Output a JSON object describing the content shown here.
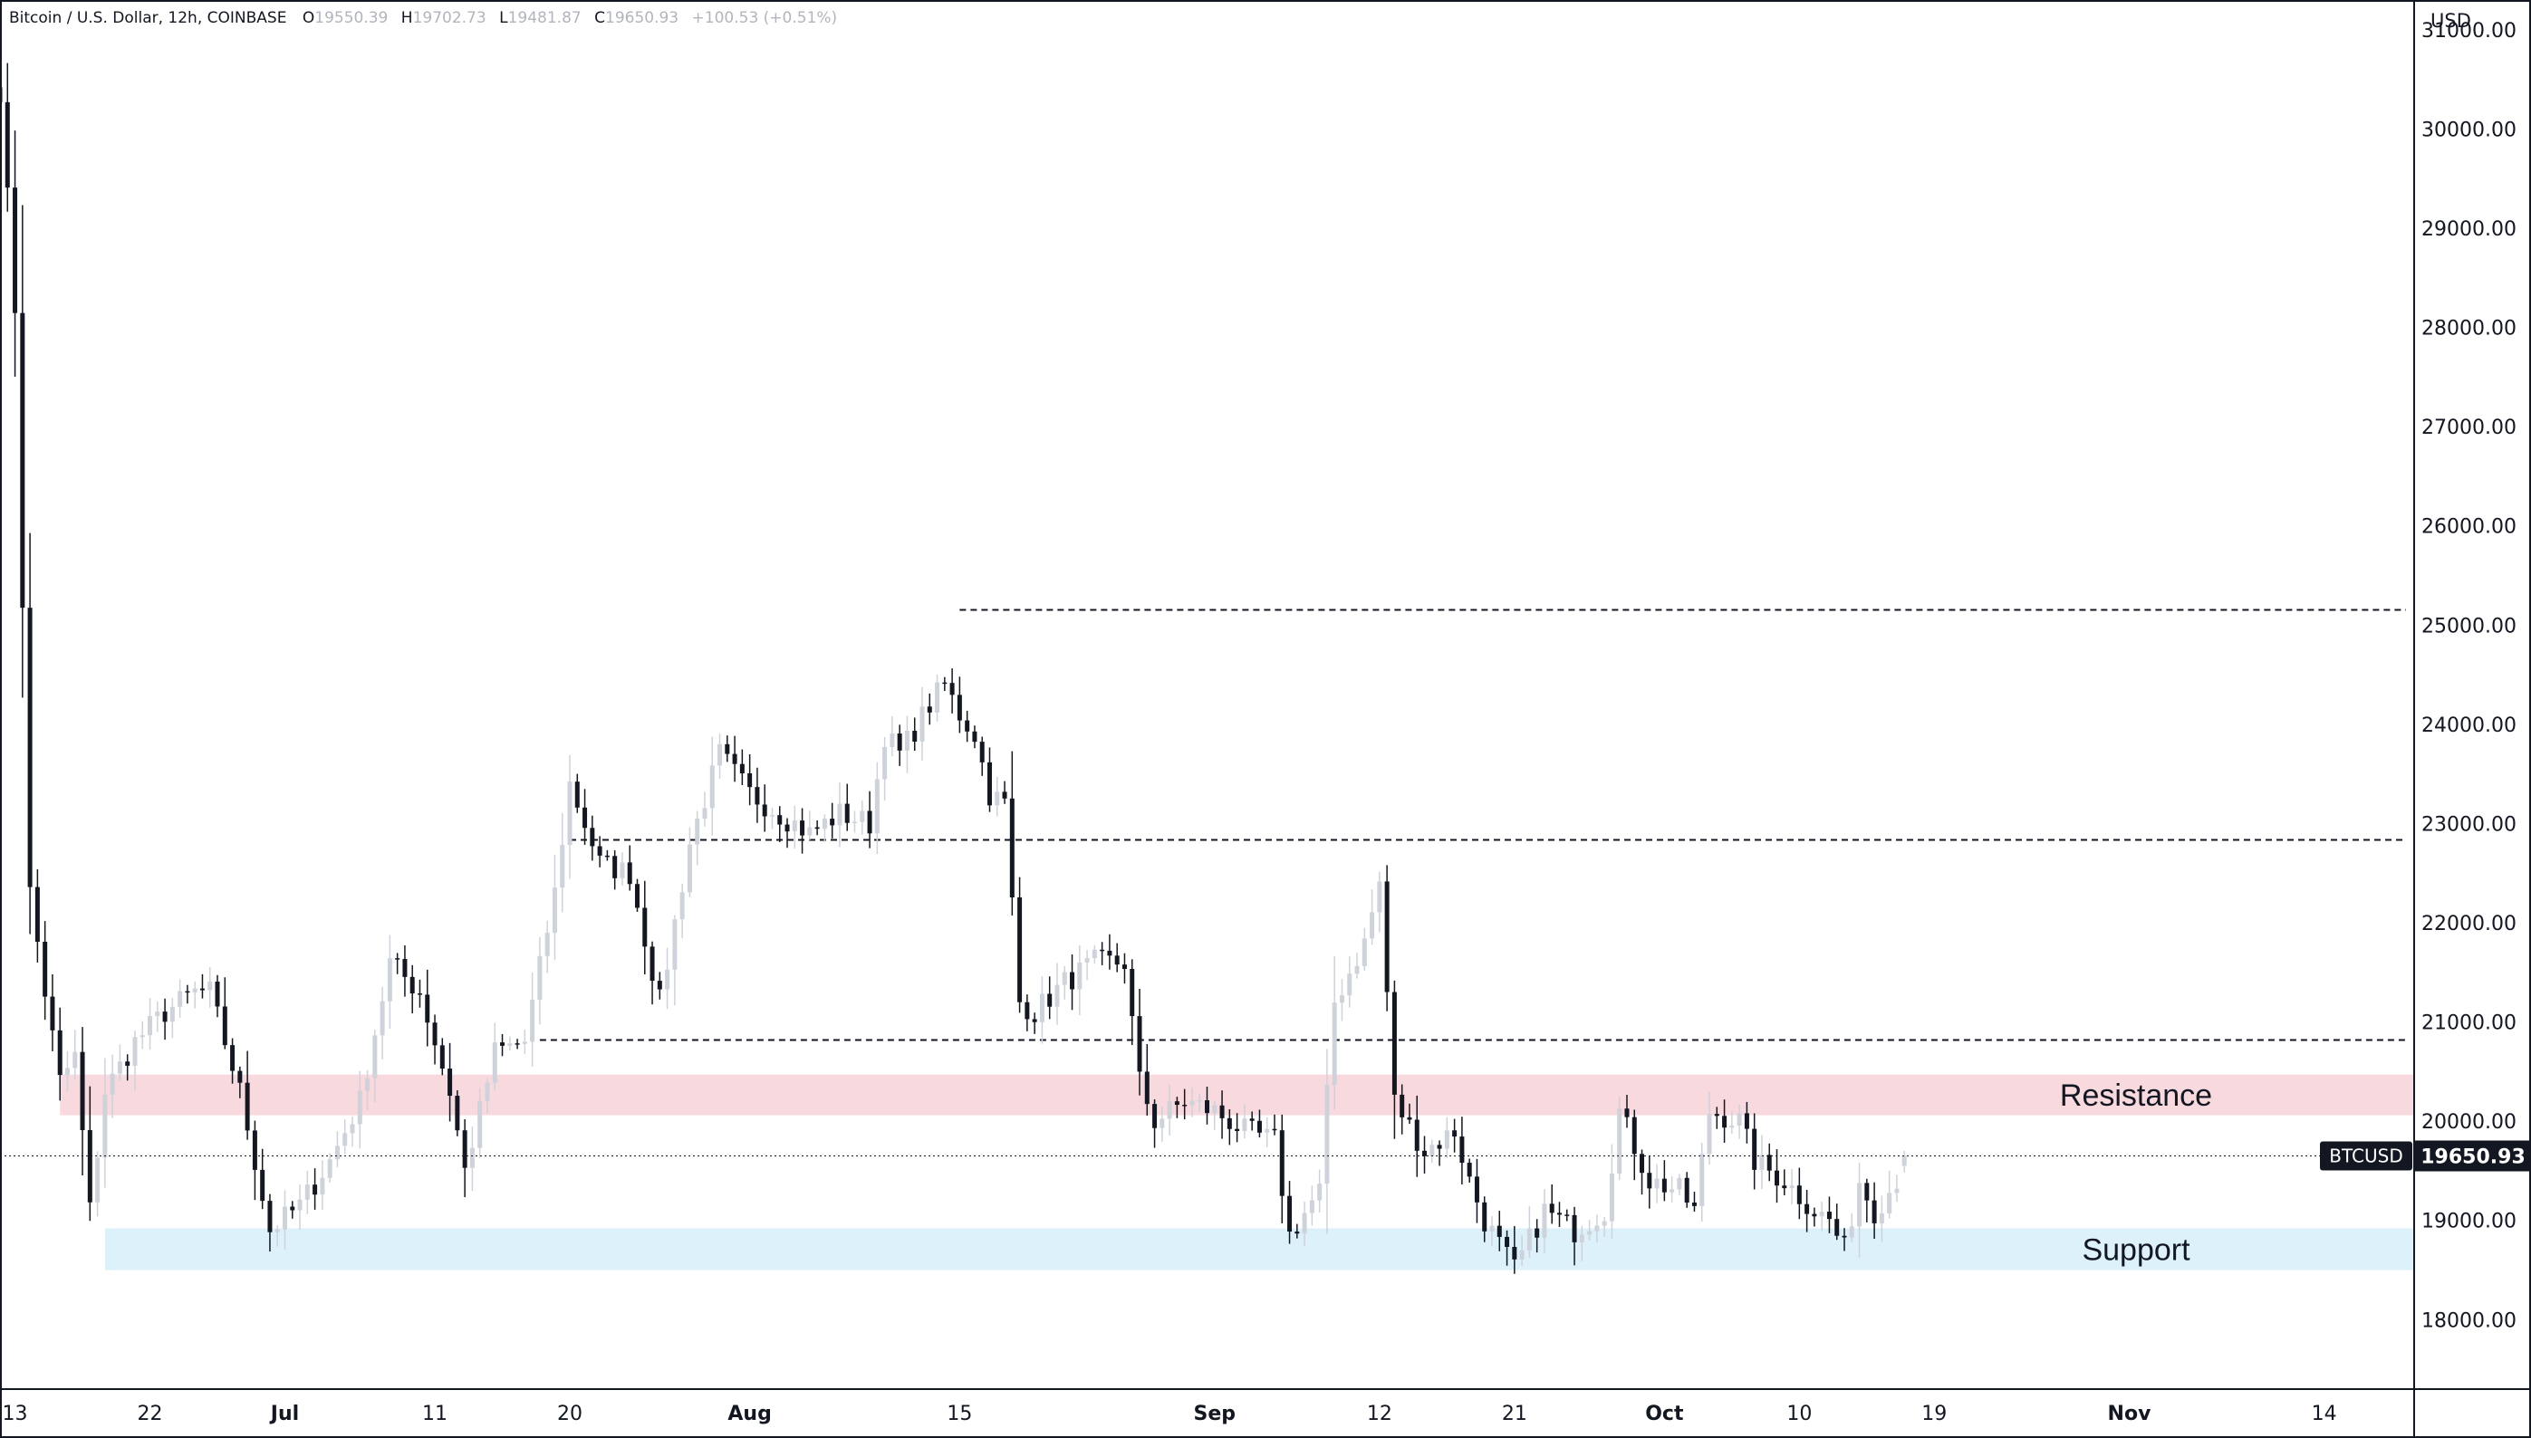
{
  "header": {
    "symbol_info": "Bitcoin / U.S. Dollar, 12h, COINBASE",
    "open_label": "O",
    "open_value": "19550.39",
    "high_label": "H",
    "high_value": "19702.73",
    "low_label": "L",
    "low_value": "19481.87",
    "close_label": "C",
    "close_value": "19650.93",
    "change": "+100.53 (+0.51%)"
  },
  "price_scale": {
    "currency": "USD",
    "ticks": [
      "31000.00",
      "30000.00",
      "29000.00",
      "28000.00",
      "27000.00",
      "26000.00",
      "25000.00",
      "24000.00",
      "23000.00",
      "22000.00",
      "21000.00",
      "20000.00",
      "19000.00",
      "18000.00"
    ],
    "tick_values": [
      31000,
      30000,
      29000,
      28000,
      27000,
      26000,
      25000,
      24000,
      23000,
      22000,
      21000,
      20000,
      19000,
      18000
    ]
  },
  "time_scale": {
    "labels": [
      {
        "text": "13",
        "date": "2022-06-13",
        "bold": false
      },
      {
        "text": "22",
        "date": "2022-06-22",
        "bold": false
      },
      {
        "text": "Jul",
        "date": "2022-07-01",
        "bold": true
      },
      {
        "text": "11",
        "date": "2022-07-11",
        "bold": false
      },
      {
        "text": "20",
        "date": "2022-07-20",
        "bold": false
      },
      {
        "text": "Aug",
        "date": "2022-08-01",
        "bold": true
      },
      {
        "text": "15",
        "date": "2022-08-15",
        "bold": false
      },
      {
        "text": "Sep",
        "date": "2022-09-01",
        "bold": true
      },
      {
        "text": "12",
        "date": "2022-09-12",
        "bold": false
      },
      {
        "text": "21",
        "date": "2022-09-21",
        "bold": false
      },
      {
        "text": "Oct",
        "date": "2022-10-01",
        "bold": true
      },
      {
        "text": "10",
        "date": "2022-10-10",
        "bold": false
      },
      {
        "text": "19",
        "date": "2022-10-19",
        "bold": false
      },
      {
        "text": "Nov",
        "date": "2022-11-01",
        "bold": true
      },
      {
        "text": "14",
        "date": "2022-11-14",
        "bold": false
      }
    ]
  },
  "price_tag": {
    "symbol": "BTCUSD",
    "value": "19650.93",
    "price": 19650.93
  },
  "zones": [
    {
      "label": "Resistance",
      "from": 20060,
      "to": 20470,
      "start": "2022-06-16",
      "color": "#f8d9dd"
    },
    {
      "label": "Support",
      "from": 18500,
      "to": 18920,
      "start": "2022-06-19",
      "color": "#dcf1f9"
    }
  ],
  "levels": [
    {
      "price": 25160,
      "start": "2022-08-15"
    },
    {
      "price": 22840,
      "start": "2022-07-20"
    },
    {
      "price": 20820,
      "start": "2022-07-18"
    }
  ],
  "colors": {
    "up": "#ced2db",
    "down": "#131722",
    "border": "#131722",
    "grid_text": "#131722"
  },
  "chart_data": {
    "type": "candlestick",
    "title": "Bitcoin / U.S. Dollar, 12h, COINBASE",
    "xlabel": "",
    "ylabel": "USD",
    "ylim": [
      17300,
      31300
    ],
    "xlim": [
      "2022-06-12",
      "2022-11-20"
    ],
    "interval": "12h",
    "grid": false,
    "anchors": [
      {
        "date": "2022-06-12",
        "c": 30400
      },
      {
        "date": "2022-06-13",
        "c": 28200
      },
      {
        "date": "2022-06-14",
        "c": 22300
      },
      {
        "date": "2022-06-15",
        "c": 21300
      },
      {
        "date": "2022-06-16",
        "c": 20400
      },
      {
        "date": "2022-06-17",
        "c": 20650
      },
      {
        "date": "2022-06-18",
        "c": 19100
      },
      {
        "date": "2022-06-19",
        "c": 20300
      },
      {
        "date": "2022-06-21",
        "c": 20800
      },
      {
        "date": "2022-06-23",
        "c": 21100
      },
      {
        "date": "2022-06-25",
        "c": 21300
      },
      {
        "date": "2022-06-26",
        "c": 21300
      },
      {
        "date": "2022-06-27",
        "c": 20800
      },
      {
        "date": "2022-06-28",
        "c": 20300
      },
      {
        "date": "2022-06-30",
        "c": 18900
      },
      {
        "date": "2022-07-02",
        "c": 19150
      },
      {
        "date": "2022-07-04",
        "c": 19600
      },
      {
        "date": "2022-07-06",
        "c": 20200
      },
      {
        "date": "2022-07-08",
        "c": 21600
      },
      {
        "date": "2022-07-10",
        "c": 21300
      },
      {
        "date": "2022-07-12",
        "c": 20300
      },
      {
        "date": "2022-07-13",
        "c": 19500
      },
      {
        "date": "2022-07-15",
        "c": 20700
      },
      {
        "date": "2022-07-17",
        "c": 20800
      },
      {
        "date": "2022-07-19",
        "c": 22300
      },
      {
        "date": "2022-07-20",
        "c": 23400
      },
      {
        "date": "2022-07-22",
        "c": 22600
      },
      {
        "date": "2022-07-24",
        "c": 22500
      },
      {
        "date": "2022-07-26",
        "c": 21200
      },
      {
        "date": "2022-07-28",
        "c": 22800
      },
      {
        "date": "2022-07-30",
        "c": 23700
      },
      {
        "date": "2022-08-01",
        "c": 23300
      },
      {
        "date": "2022-08-03",
        "c": 23100
      },
      {
        "date": "2022-08-05",
        "c": 22900
      },
      {
        "date": "2022-08-07",
        "c": 23100
      },
      {
        "date": "2022-08-09",
        "c": 23000
      },
      {
        "date": "2022-08-10",
        "c": 23900
      },
      {
        "date": "2022-08-11",
        "c": 23700
      },
      {
        "date": "2022-08-13",
        "c": 24200
      },
      {
        "date": "2022-08-14",
        "c": 24400
      },
      {
        "date": "2022-08-15",
        "c": 24100
      },
      {
        "date": "2022-08-16",
        "c": 23900
      },
      {
        "date": "2022-08-17",
        "c": 23300
      },
      {
        "date": "2022-08-18",
        "c": 23200
      },
      {
        "date": "2022-08-19",
        "c": 21200
      },
      {
        "date": "2022-08-20",
        "c": 21100
      },
      {
        "date": "2022-08-22",
        "c": 21400
      },
      {
        "date": "2022-08-24",
        "c": 21600
      },
      {
        "date": "2022-08-26",
        "c": 21600
      },
      {
        "date": "2022-08-27",
        "c": 20400
      },
      {
        "date": "2022-08-28",
        "c": 20000
      },
      {
        "date": "2022-08-30",
        "c": 20200
      },
      {
        "date": "2022-09-01",
        "c": 20100
      },
      {
        "date": "2022-09-03",
        "c": 19900
      },
      {
        "date": "2022-09-05",
        "c": 19800
      },
      {
        "date": "2022-09-06",
        "c": 18850
      },
      {
        "date": "2022-09-08",
        "c": 19300
      },
      {
        "date": "2022-09-09",
        "c": 21200
      },
      {
        "date": "2022-09-11",
        "c": 21800
      },
      {
        "date": "2022-09-12",
        "c": 22400
      },
      {
        "date": "2022-09-13",
        "c": 20200
      },
      {
        "date": "2022-09-15",
        "c": 19700
      },
      {
        "date": "2022-09-17",
        "c": 19900
      },
      {
        "date": "2022-09-18",
        "c": 19400
      },
      {
        "date": "2022-09-19",
        "c": 19000
      },
      {
        "date": "2022-09-21",
        "c": 18500
      },
      {
        "date": "2022-09-23",
        "c": 19100
      },
      {
        "date": "2022-09-25",
        "c": 18900
      },
      {
        "date": "2022-09-27",
        "c": 19100
      },
      {
        "date": "2022-09-28",
        "c": 20100
      },
      {
        "date": "2022-09-30",
        "c": 19400
      },
      {
        "date": "2022-10-02",
        "c": 19300
      },
      {
        "date": "2022-10-03",
        "c": 19100
      },
      {
        "date": "2022-10-04",
        "c": 20100
      },
      {
        "date": "2022-10-06",
        "c": 20000
      },
      {
        "date": "2022-10-07",
        "c": 19600
      },
      {
        "date": "2022-10-09",
        "c": 19400
      },
      {
        "date": "2022-10-11",
        "c": 19100
      },
      {
        "date": "2022-10-12",
        "c": 19000
      },
      {
        "date": "2022-10-13",
        "c": 18700
      },
      {
        "date": "2022-10-14",
        "c": 19400
      },
      {
        "date": "2022-10-15",
        "c": 19100
      },
      {
        "date": "2022-10-16",
        "c": 19300
      },
      {
        "date": "2022-10-17",
        "c": 19550
      }
    ],
    "last_candle": {
      "o": 19550.39,
      "h": 19702.73,
      "l": 19481.87,
      "c": 19650.93
    }
  }
}
